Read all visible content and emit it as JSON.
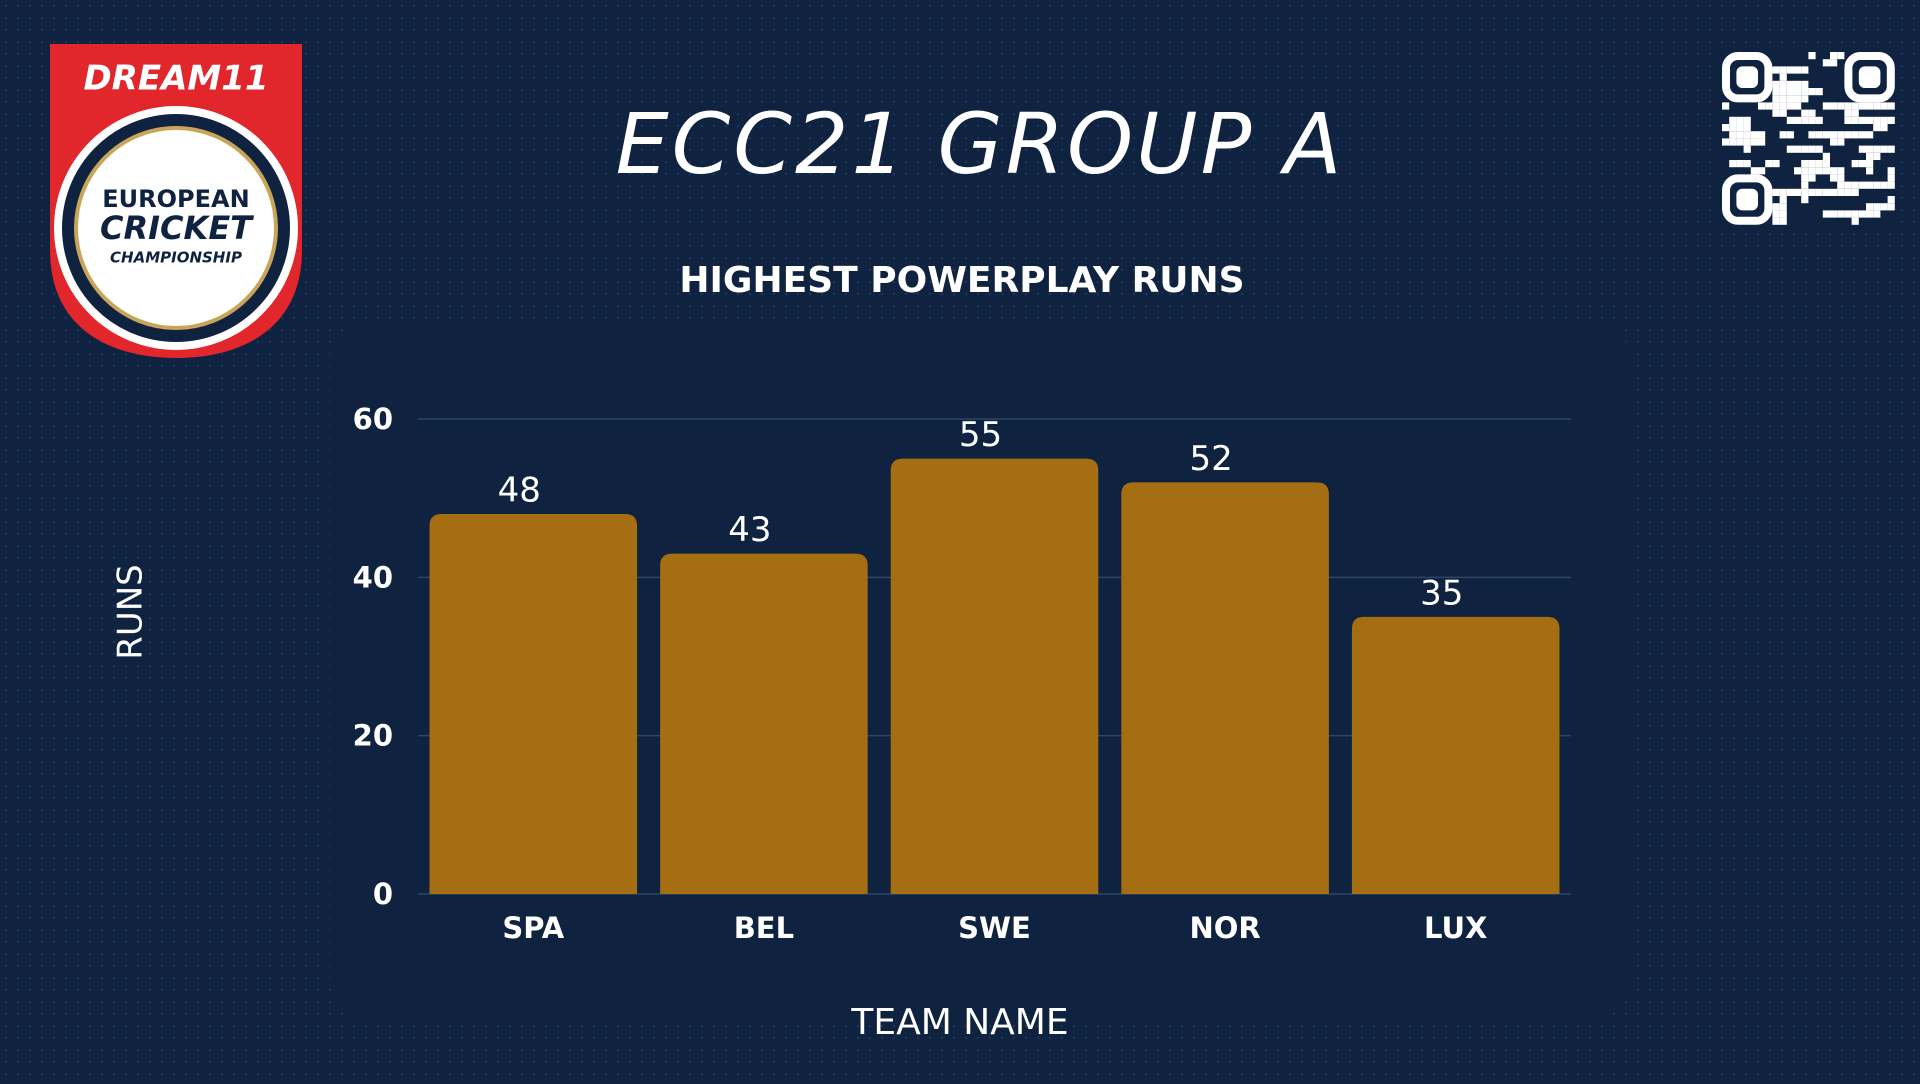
{
  "chart_data": {
    "type": "bar",
    "logo": {
      "brand": "DREAM11",
      "line1": "EUROPEAN",
      "line2": "CRICKET",
      "line3": "CHAMPIONSHIP"
    },
    "heading": "ECC21 GROUP A",
    "title": "HIGHEST POWERPLAY RUNS",
    "y_label": "RUNS",
    "x_label": "TEAM NAME",
    "categories": [
      "SPA",
      "BEL",
      "SWE",
      "NOR",
      "LUX"
    ],
    "values": [
      48,
      43,
      55,
      52,
      35
    ],
    "color": "#a66e12",
    "ylim": [
      0,
      60
    ],
    "yticks": [
      0,
      20,
      40,
      60
    ],
    "grid": true
  }
}
